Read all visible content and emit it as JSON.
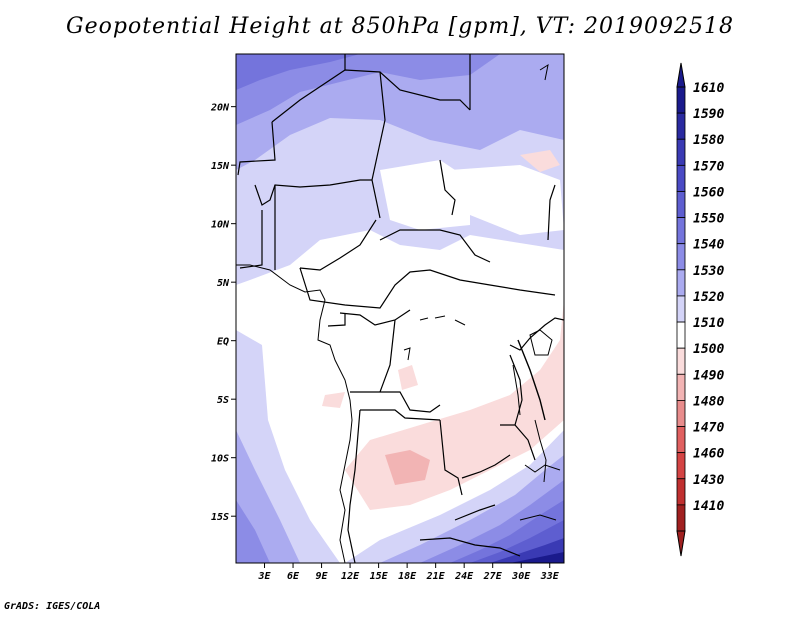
{
  "title": "Geopotential Height at 850hPa [gpm], VT: 2019092518",
  "footer": "GrADS: IGES/COLA",
  "map": {
    "x_ticks": [
      "3E",
      "6E",
      "9E",
      "12E",
      "15E",
      "18E",
      "21E",
      "24E",
      "27E",
      "30E",
      "33E"
    ],
    "y_ticks": [
      "20N",
      "15N",
      "10N",
      "5N",
      "EQ",
      "5S",
      "10S",
      "15S"
    ],
    "lon_range": [
      0,
      34.5
    ],
    "lat_range": [
      -19,
      24.5
    ]
  },
  "colorbar": {
    "levels": [
      "1610",
      "1590",
      "1580",
      "1570",
      "1560",
      "1550",
      "1540",
      "1530",
      "1520",
      "1510",
      "1500",
      "1490",
      "1480",
      "1470",
      "1460",
      "1430",
      "1410"
    ],
    "colors": [
      "#1a1a8c",
      "#2a2aa0",
      "#3a3ab4",
      "#4a4ac4",
      "#5e5ed0",
      "#7474dc",
      "#8c8ce6",
      "#ababf0",
      "#d4d4f8",
      "#ffffff",
      "#fadcdc",
      "#f2b4b4",
      "#e88c8c",
      "#e06060",
      "#d44444",
      "#c03030",
      "#a02020"
    ]
  }
}
